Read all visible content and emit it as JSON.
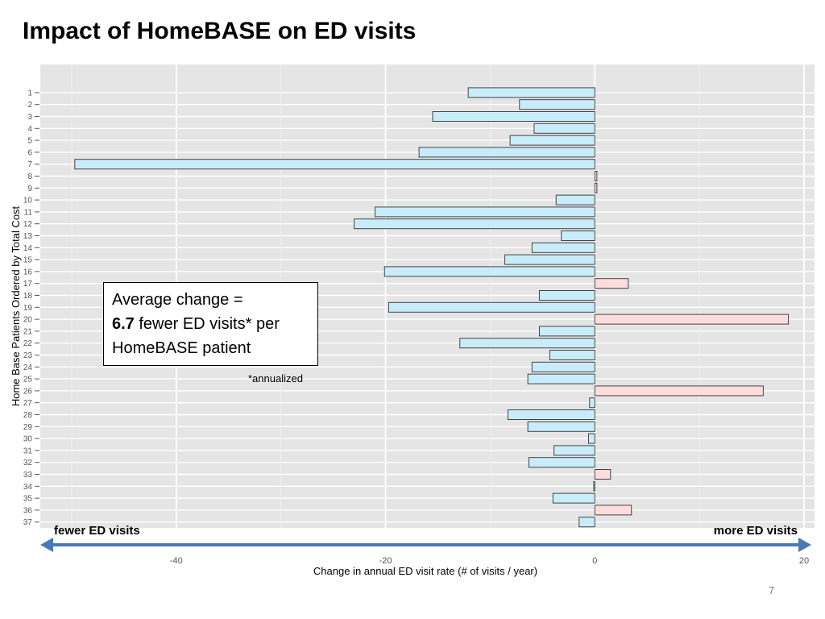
{
  "slide": {
    "title": "Impact of HomeBASE on ED visits",
    "page_number": "7"
  },
  "annotation": {
    "line1": "Average change =",
    "value": "6.7",
    "line2_rest": " fewer ED visits* per",
    "line3": "HomeBASE patient",
    "footnote": "*annualized"
  },
  "direction_labels": {
    "left": "fewer ED visits",
    "right": "more ED visits"
  },
  "colors": {
    "decrease_fill": "#c9ecfb",
    "increase_fill": "#fddcdd",
    "bar_stroke": "#444444",
    "panel_bg": "#e5e5e5",
    "arrow": "#4a7ab5"
  },
  "chart_data": {
    "type": "bar",
    "orientation": "horizontal",
    "title": "",
    "xlabel": "Change in annual ED visit rate (# of visits / year)",
    "ylabel": "Home Base Patients Ordered by Total Cost",
    "xlim": [
      -53,
      21
    ],
    "xticks": [
      -40,
      -20,
      0,
      20
    ],
    "grid": true,
    "categories": [
      "1",
      "2",
      "3",
      "4",
      "5",
      "6",
      "7",
      "8",
      "9",
      "10",
      "11",
      "12",
      "13",
      "14",
      "15",
      "16",
      "17",
      "18",
      "19",
      "20",
      "21",
      "22",
      "23",
      "24",
      "25",
      "26",
      "27",
      "28",
      "29",
      "30",
      "31",
      "32",
      "33",
      "34",
      "35",
      "36",
      "37"
    ],
    "values": [
      -12.1,
      -7.2,
      -15.5,
      -5.8,
      -8.1,
      -16.8,
      -49.7,
      0.2,
      0.2,
      -3.7,
      -21.0,
      -23.0,
      -3.2,
      -6.0,
      -8.6,
      -20.1,
      3.2,
      -5.3,
      -19.7,
      18.5,
      -5.3,
      -12.9,
      -4.3,
      -6.0,
      -6.4,
      16.1,
      -0.5,
      -8.3,
      -6.4,
      -0.6,
      -3.9,
      -6.3,
      1.5,
      -0.1,
      -4.0,
      3.5,
      -1.5
    ]
  }
}
